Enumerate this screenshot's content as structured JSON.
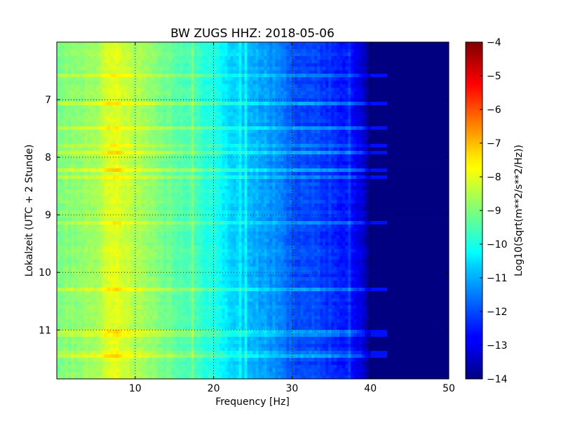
{
  "chart_data": {
    "type": "heatmap",
    "title": "BW ZUGS HHZ: 2018-05-06",
    "xlabel": "Frequency [Hz]",
    "ylabel": "Lokalzeit (UTC + 2 Stunde)",
    "xlim": [
      0,
      50
    ],
    "ylim": [
      6.0,
      11.85
    ],
    "y_inverted": true,
    "x_ticks": [
      10,
      20,
      30,
      40,
      50
    ],
    "y_ticks": [
      7,
      8,
      9,
      10,
      11
    ],
    "grid": true,
    "grid_style": "dotted",
    "colormap": "jet",
    "colorbar": {
      "label": "Log10(Sqrt(m**2/s**2/Hz))",
      "range": [
        -14,
        -4
      ],
      "ticks": [
        -14,
        -13,
        -12,
        -11,
        -10,
        -9,
        -8,
        -7,
        -6,
        -5,
        -4
      ]
    },
    "z_profile_by_frequency": {
      "frequency": [
        0,
        5,
        7.5,
        10,
        15,
        20,
        22,
        25,
        28,
        30,
        35,
        37,
        39,
        40,
        50
      ],
      "value": [
        -9.1,
        -8.6,
        -8.0,
        -8.5,
        -9.3,
        -10.0,
        -10.6,
        -11.0,
        -11.4,
        -11.9,
        -12.3,
        -12.6,
        -13.1,
        -14.0,
        -14.0
      ]
    }
  }
}
